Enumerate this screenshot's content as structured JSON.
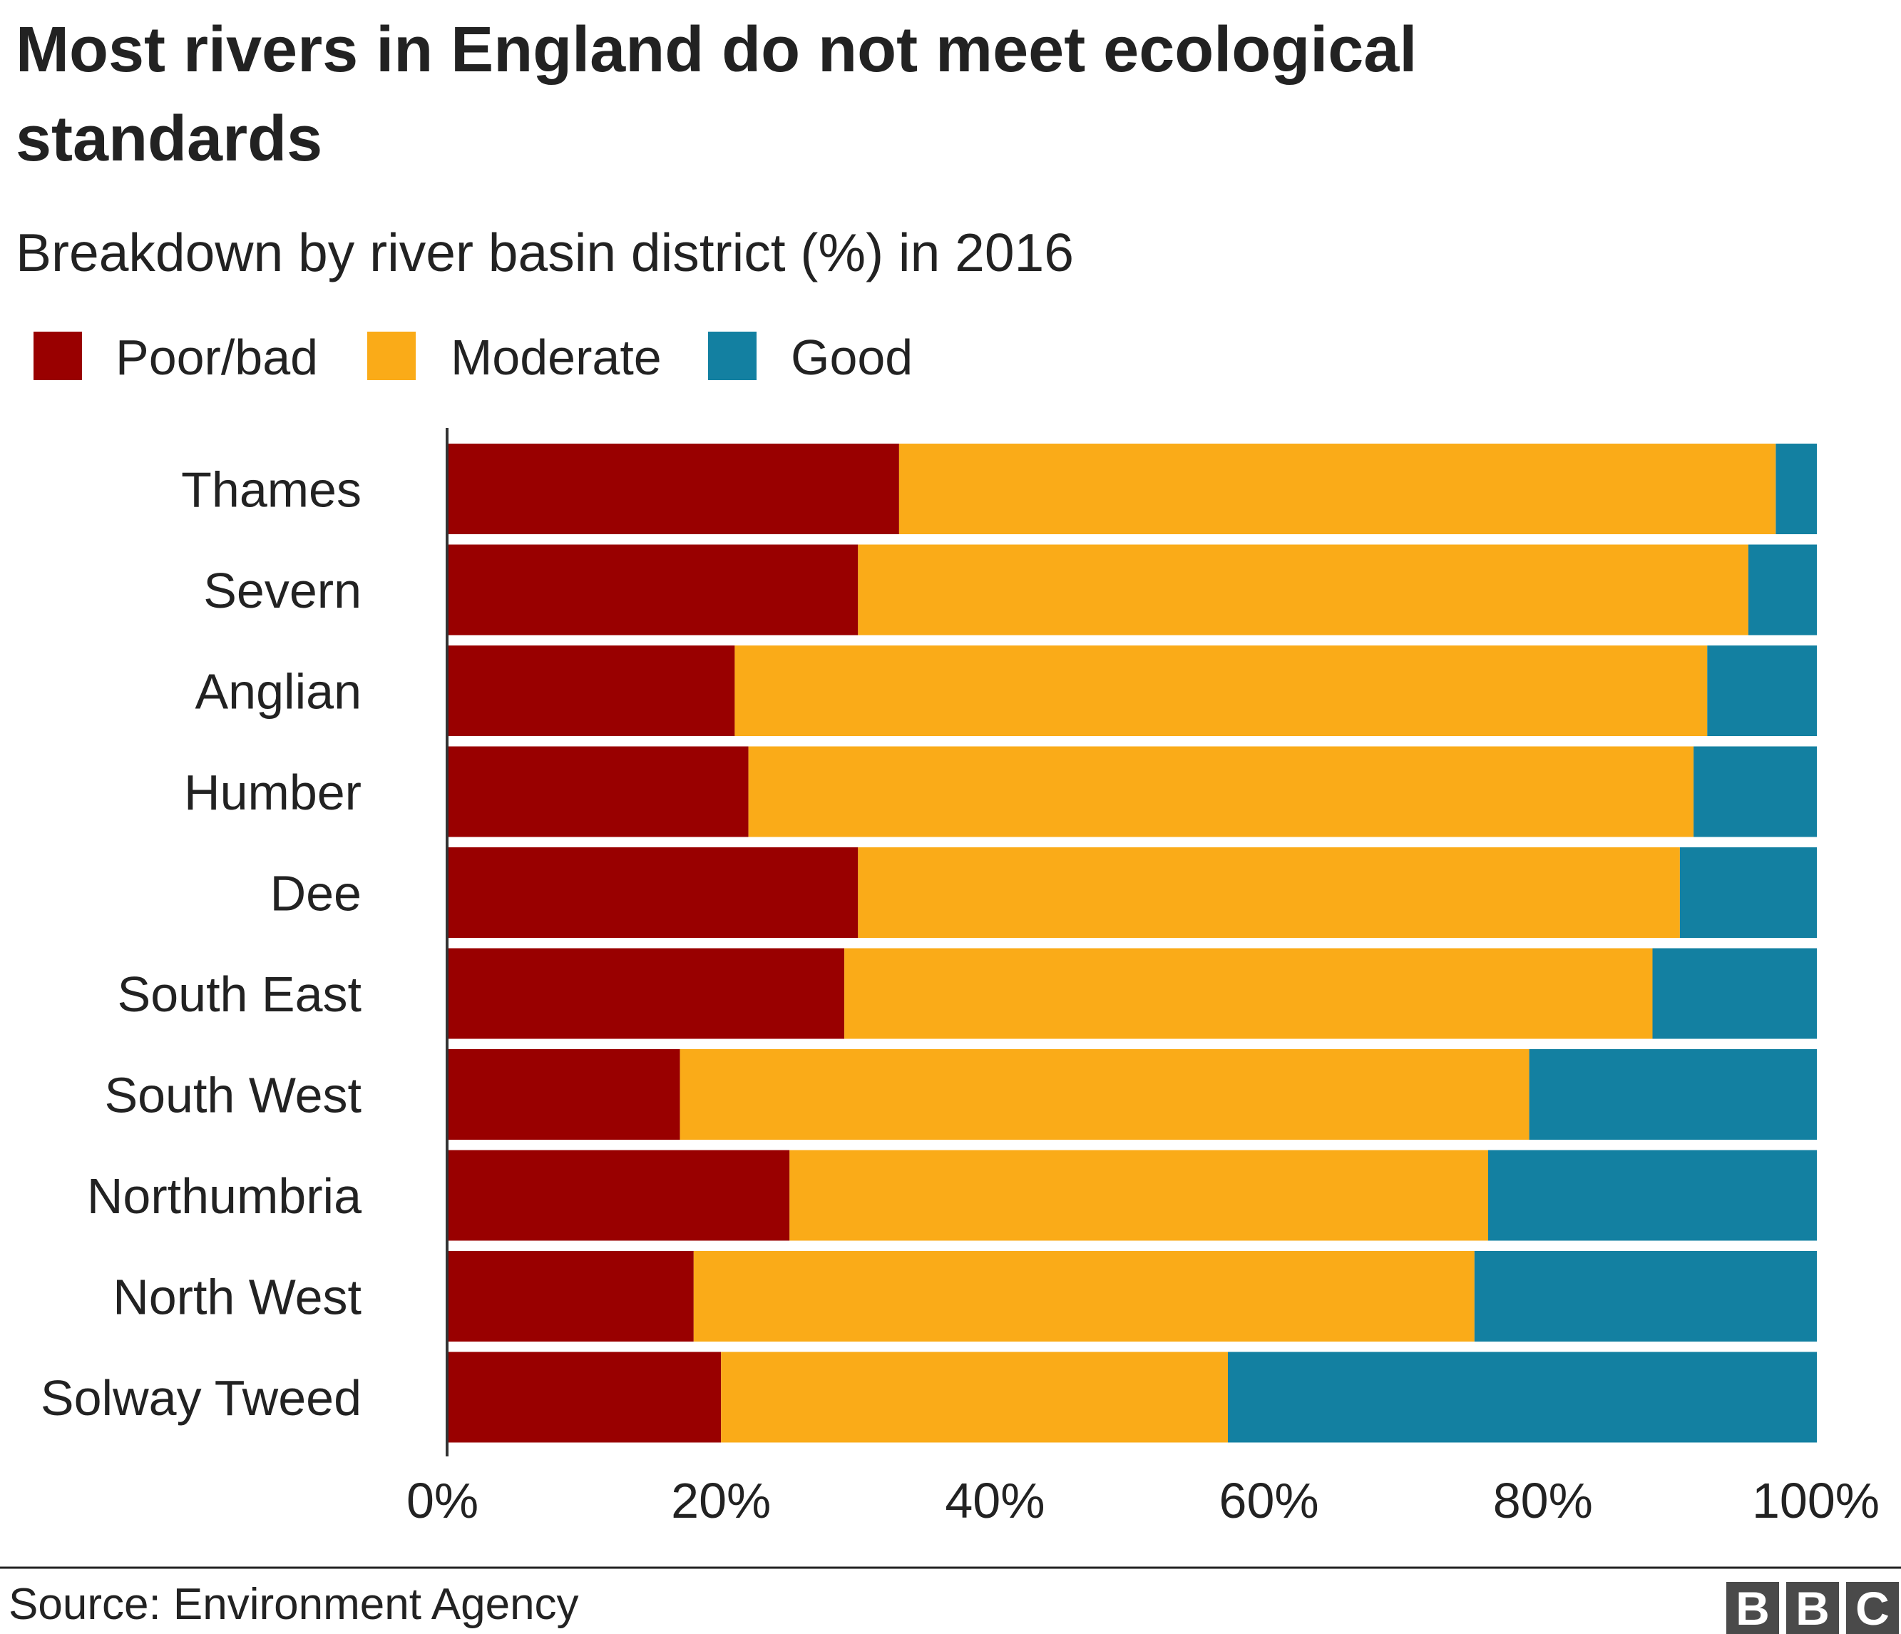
{
  "chart_data": {
    "type": "bar",
    "orientation": "horizontal",
    "stacked": true,
    "title_line1": "Most rivers in England do not meet ecological",
    "title_line2": "standards",
    "subtitle": "Breakdown by river basin district (%) in 2016",
    "categories": [
      "Thames",
      "Severn",
      "Anglian",
      "Humber",
      "Dee",
      "South East",
      "South West",
      "Northumbria",
      "North West",
      "Solway Tweed"
    ],
    "series": [
      {
        "name": "Poor/bad",
        "color": "#990000",
        "values": [
          33,
          30,
          21,
          22,
          30,
          29,
          17,
          25,
          18,
          20
        ]
      },
      {
        "name": "Moderate",
        "color": "#FAAB18",
        "values": [
          64,
          65,
          71,
          69,
          60,
          59,
          62,
          51,
          57,
          37
        ]
      },
      {
        "name": "Good",
        "color": "#1380A1",
        "values": [
          3,
          5,
          8,
          9,
          10,
          12,
          21,
          24,
          25,
          43
        ]
      }
    ],
    "xlim": [
      0,
      100
    ],
    "x_ticks": [
      0,
      20,
      40,
      60,
      80,
      100
    ],
    "x_tick_labels": [
      "0%",
      "20%",
      "40%",
      "60%",
      "80%",
      "100%"
    ],
    "legend_position": "top-left",
    "grid": false
  },
  "source": "Source: Environment Agency",
  "logo": {
    "letters": [
      "B",
      "B",
      "C"
    ],
    "color": "#4a4a4a"
  }
}
